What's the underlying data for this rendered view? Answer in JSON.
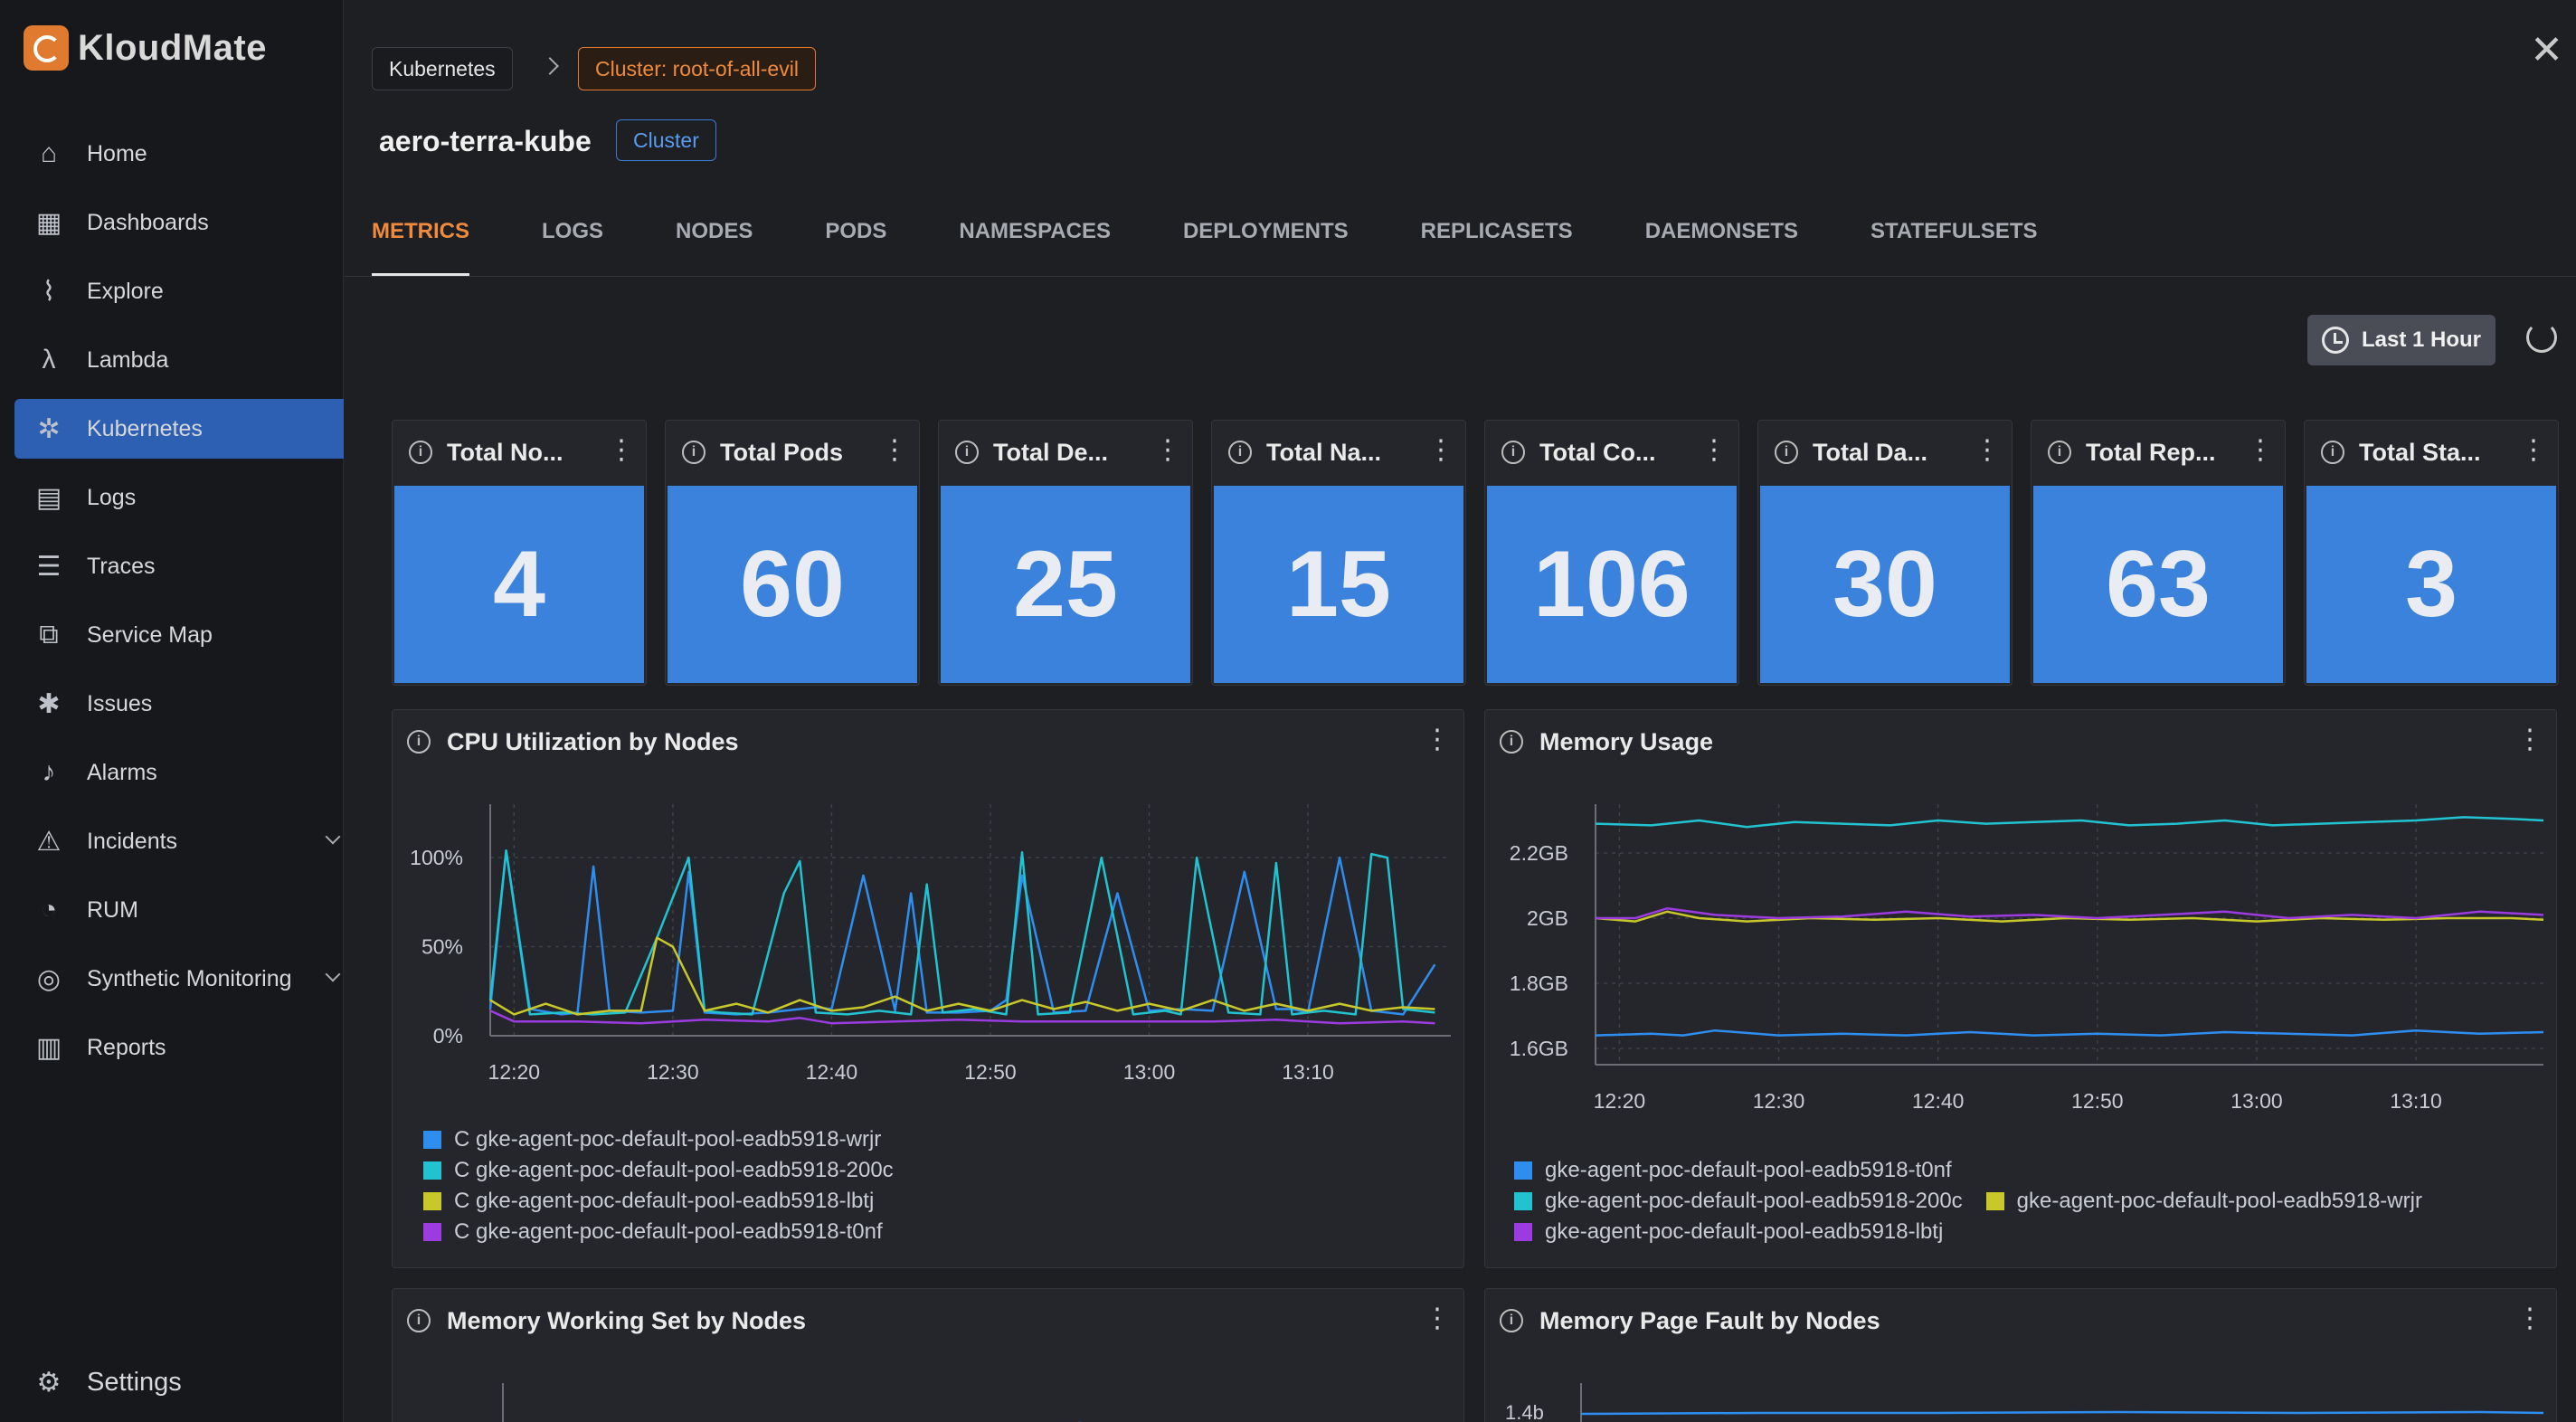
{
  "brand": {
    "name": "KloudMate"
  },
  "sidebar": {
    "items": [
      {
        "label": "Home",
        "icon": "home-icon"
      },
      {
        "label": "Dashboards",
        "icon": "dashboard-icon"
      },
      {
        "label": "Explore",
        "icon": "explore-icon"
      },
      {
        "label": "Lambda",
        "icon": "lambda-icon"
      },
      {
        "label": "Kubernetes",
        "icon": "kubernetes-icon",
        "active": true
      },
      {
        "label": "Logs",
        "icon": "logs-icon"
      },
      {
        "label": "Traces",
        "icon": "traces-icon"
      },
      {
        "label": "Service Map",
        "icon": "service-map-icon"
      },
      {
        "label": "Issues",
        "icon": "bug-icon"
      },
      {
        "label": "Alarms",
        "icon": "bell-icon"
      },
      {
        "label": "Incidents",
        "icon": "incident-icon",
        "expandable": true
      },
      {
        "label": "RUM",
        "icon": "rum-icon"
      },
      {
        "label": "Synthetic Monitoring",
        "icon": "synthetic-icon",
        "expandable": true
      },
      {
        "label": "Reports",
        "icon": "reports-icon"
      }
    ],
    "settings_label": "Settings"
  },
  "breadcrumb": {
    "root": "Kubernetes",
    "cluster": "Cluster: root-of-all-evil"
  },
  "header": {
    "title": "aero-terra-kube",
    "badge": "Cluster"
  },
  "tabs": [
    "METRICS",
    "LOGS",
    "NODES",
    "PODS",
    "NAMESPACES",
    "DEPLOYMENTS",
    "REPLICASETS",
    "DAEMONSETS",
    "STATEFULSETS"
  ],
  "active_tab": "METRICS",
  "time_range": {
    "label": "Last 1 Hour"
  },
  "stats": [
    {
      "title": "Total No...",
      "value": "4"
    },
    {
      "title": "Total Pods",
      "value": "60"
    },
    {
      "title": "Total De...",
      "value": "25"
    },
    {
      "title": "Total Na...",
      "value": "15"
    },
    {
      "title": "Total Co...",
      "value": "106"
    },
    {
      "title": "Total Da...",
      "value": "30"
    },
    {
      "title": "Total Rep...",
      "value": "63"
    },
    {
      "title": "Total Sta...",
      "value": "3"
    }
  ],
  "colors": {
    "blue": "#2e8ef0",
    "cyan": "#22c3d0",
    "yellow": "#c8c82a",
    "purple": "#9b3be0",
    "stat_bg": "#3b82dc",
    "accent": "#f08a3c"
  },
  "panels": {
    "cpu": {
      "title": "CPU Utilization by Nodes"
    },
    "memory": {
      "title": "Memory Usage"
    },
    "working_set": {
      "title": "Memory Working Set by Nodes"
    },
    "page_fault": {
      "title": "Memory Page Fault by Nodes"
    }
  },
  "chart_data": [
    {
      "type": "line",
      "title": "CPU Utilization by Nodes",
      "ylim": [
        0,
        130
      ],
      "yticks": [
        "0%",
        "50%",
        "100%"
      ],
      "ytick_values": [
        0,
        50,
        100
      ],
      "x_ticks": [
        "12:20",
        "12:30",
        "12:40",
        "12:50",
        "13:00",
        "13:10"
      ],
      "x_tick_values": [
        0,
        10,
        20,
        30,
        40,
        50
      ],
      "xlim": [
        -1.5,
        59
      ],
      "series": [
        {
          "name": "C gke-agent-poc-default-pool-eadb5918-wrjr",
          "color": "#2e8ef0",
          "x": [
            -1.5,
            -0.5,
            1,
            3,
            4,
            5,
            6,
            8,
            10,
            11,
            12,
            14,
            16,
            18,
            19,
            20,
            22,
            24,
            25,
            26,
            28,
            30,
            31,
            32,
            34,
            36,
            38,
            40,
            42,
            44,
            46,
            48,
            49,
            50,
            52,
            54,
            55,
            56,
            58
          ],
          "y": [
            15,
            104,
            15,
            12,
            13,
            95,
            14,
            13,
            14,
            92,
            13,
            12,
            13,
            15,
            16,
            15,
            90,
            14,
            80,
            13,
            13,
            14,
            20,
            90,
            13,
            14,
            80,
            14,
            15,
            14,
            92,
            15,
            15,
            13,
            100,
            14,
            13,
            12,
            40
          ]
        },
        {
          "name": "C gke-agent-poc-default-pool-eadb5918-200c",
          "color": "#22c3d0",
          "x": [
            -1.5,
            -0.5,
            1,
            3,
            5,
            7,
            9,
            11,
            12,
            13,
            15,
            17,
            18,
            19,
            21,
            23,
            25,
            26,
            27,
            29,
            31,
            32,
            33,
            35,
            37,
            39,
            41,
            42,
            43,
            45,
            47,
            48,
            49,
            51,
            53,
            54,
            55,
            56,
            58
          ],
          "y": [
            20,
            104,
            12,
            13,
            12,
            13,
            55,
            100,
            14,
            13,
            12,
            80,
            98,
            13,
            12,
            14,
            12,
            85,
            13,
            15,
            12,
            103,
            12,
            13,
            100,
            12,
            14,
            12,
            100,
            13,
            12,
            97,
            12,
            14,
            12,
            102,
            100,
            15,
            13
          ]
        },
        {
          "name": "C gke-agent-poc-default-pool-eadb5918-lbtj",
          "color": "#c8c82a",
          "x": [
            -1.5,
            0,
            2,
            4,
            6,
            8,
            9,
            10,
            12,
            14,
            16,
            18,
            20,
            22,
            24,
            26,
            28,
            30,
            32,
            34,
            36,
            38,
            40,
            42,
            44,
            46,
            48,
            50,
            52,
            54,
            56,
            58
          ],
          "y": [
            20,
            12,
            18,
            12,
            14,
            14,
            55,
            50,
            14,
            18,
            13,
            20,
            14,
            16,
            22,
            14,
            18,
            14,
            20,
            15,
            19,
            14,
            18,
            14,
            20,
            14,
            18,
            14,
            18,
            14,
            16,
            15
          ]
        },
        {
          "name": "C gke-agent-poc-default-pool-eadb5918-t0nf",
          "color": "#9b3be0",
          "x": [
            -1.5,
            0,
            4,
            8,
            12,
            16,
            18,
            20,
            24,
            28,
            32,
            36,
            40,
            44,
            48,
            52,
            56,
            58
          ],
          "y": [
            14,
            8,
            8,
            7,
            9,
            8,
            10,
            7,
            8,
            9,
            8,
            8,
            8,
            8,
            9,
            7,
            8,
            7
          ]
        }
      ]
    },
    {
      "type": "line",
      "title": "Memory Usage",
      "ylim": [
        1.55,
        2.35
      ],
      "yticks": [
        "1.6GB",
        "1.8GB",
        "2GB",
        "2.2GB"
      ],
      "ytick_values": [
        1.6,
        1.8,
        2.0,
        2.2
      ],
      "x_ticks": [
        "12:20",
        "12:30",
        "12:40",
        "12:50",
        "13:00",
        "13:10"
      ],
      "x_tick_values": [
        0,
        10,
        20,
        30,
        40,
        50
      ],
      "xlim": [
        -1.5,
        58
      ],
      "series": [
        {
          "name": "gke-agent-poc-default-pool-eadb5918-t0nf",
          "color": "#2e8ef0",
          "x": [
            -1.5,
            2,
            4,
            6,
            10,
            14,
            18,
            22,
            26,
            30,
            34,
            38,
            42,
            46,
            50,
            54,
            58
          ],
          "y": [
            1.64,
            1.645,
            1.64,
            1.655,
            1.64,
            1.645,
            1.64,
            1.65,
            1.64,
            1.645,
            1.64,
            1.65,
            1.645,
            1.64,
            1.655,
            1.645,
            1.65
          ]
        },
        {
          "name": "gke-agent-poc-default-pool-eadb5918-200c",
          "color": "#22c3d0",
          "x": [
            -1.5,
            2,
            5,
            8,
            11,
            14,
            17,
            20,
            23,
            26,
            29,
            32,
            35,
            38,
            41,
            44,
            47,
            50,
            53,
            56,
            58
          ],
          "y": [
            2.29,
            2.285,
            2.3,
            2.28,
            2.295,
            2.29,
            2.285,
            2.3,
            2.29,
            2.295,
            2.3,
            2.285,
            2.29,
            2.3,
            2.285,
            2.29,
            2.295,
            2.3,
            2.31,
            2.305,
            2.3
          ]
        },
        {
          "name": "gke-agent-poc-default-pool-eadb5918-wrjr",
          "color": "#c8c82a",
          "x": [
            -1.5,
            1,
            3,
            5,
            8,
            12,
            16,
            20,
            24,
            28,
            32,
            36,
            40,
            44,
            48,
            52,
            56,
            58
          ],
          "y": [
            2.0,
            1.99,
            2.02,
            2.0,
            1.99,
            2.0,
            1.995,
            2.0,
            1.99,
            2.0,
            1.995,
            2.0,
            1.99,
            2.0,
            1.995,
            2.0,
            2.0,
            1.995
          ]
        },
        {
          "name": "gke-agent-poc-default-pool-eadb5918-lbtj",
          "color": "#9b3be0",
          "x": [
            -1.5,
            1,
            3,
            6,
            10,
            14,
            18,
            22,
            26,
            30,
            34,
            38,
            42,
            46,
            50,
            54,
            58
          ],
          "y": [
            2.0,
            2.0,
            2.03,
            2.01,
            2.0,
            2.005,
            2.02,
            2.005,
            2.01,
            2.0,
            2.01,
            2.02,
            2.0,
            2.01,
            2.0,
            2.02,
            2.01
          ]
        }
      ]
    },
    {
      "type": "line",
      "title": "Memory Working Set by Nodes",
      "series": []
    },
    {
      "type": "line",
      "title": "Memory Page Fault by Nodes",
      "yticks": [
        "1.4b"
      ],
      "series": []
    }
  ]
}
